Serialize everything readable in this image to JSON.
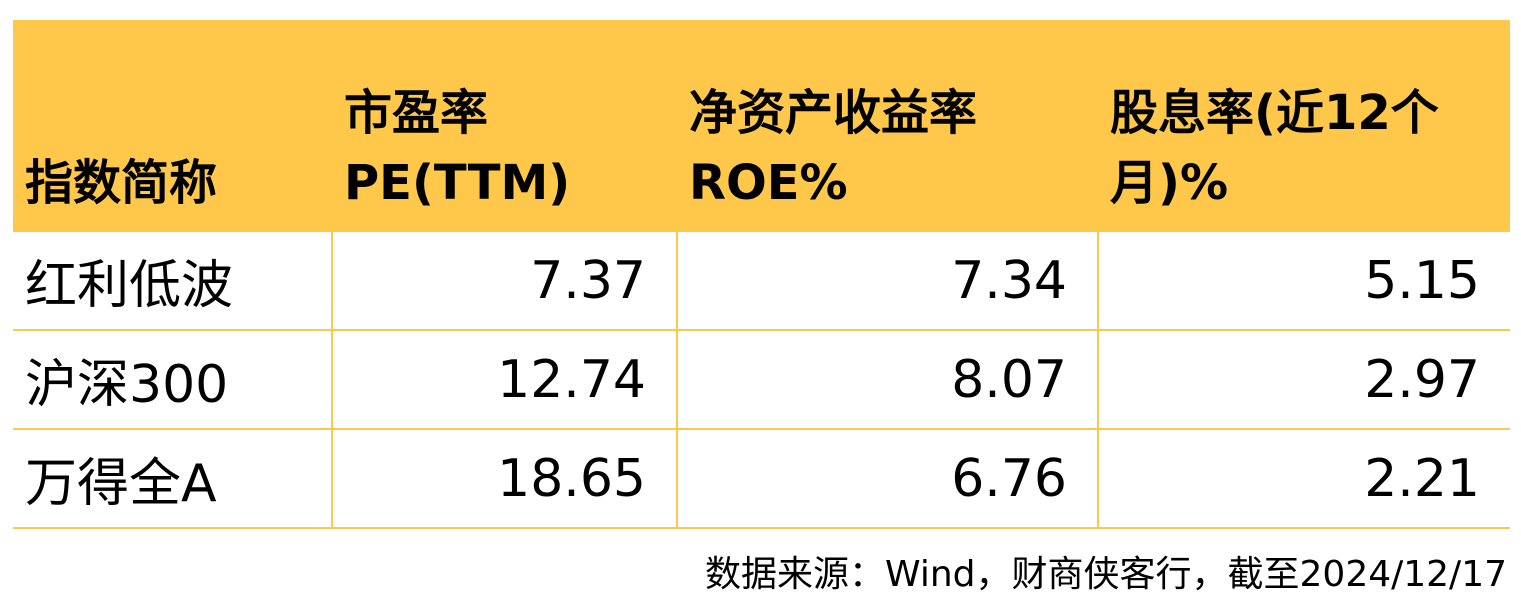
{
  "table": {
    "headers": [
      "指数简称",
      "市盈率PE(TTM)",
      "净资产收益率ROE%",
      "股息率(近12个月)%"
    ],
    "rows": [
      [
        "红利低波",
        "7.37",
        "7.34",
        "5.15"
      ],
      [
        "沪深300",
        "12.74",
        "8.07",
        "2.97"
      ],
      [
        "万得全A",
        "18.65",
        "6.76",
        "2.21"
      ]
    ]
  },
  "source": "数据来源：Wind，财商侠客行，截至2024/12/17",
  "colors": {
    "header_bg": "#FFC84A",
    "border": "#FFC84A"
  }
}
